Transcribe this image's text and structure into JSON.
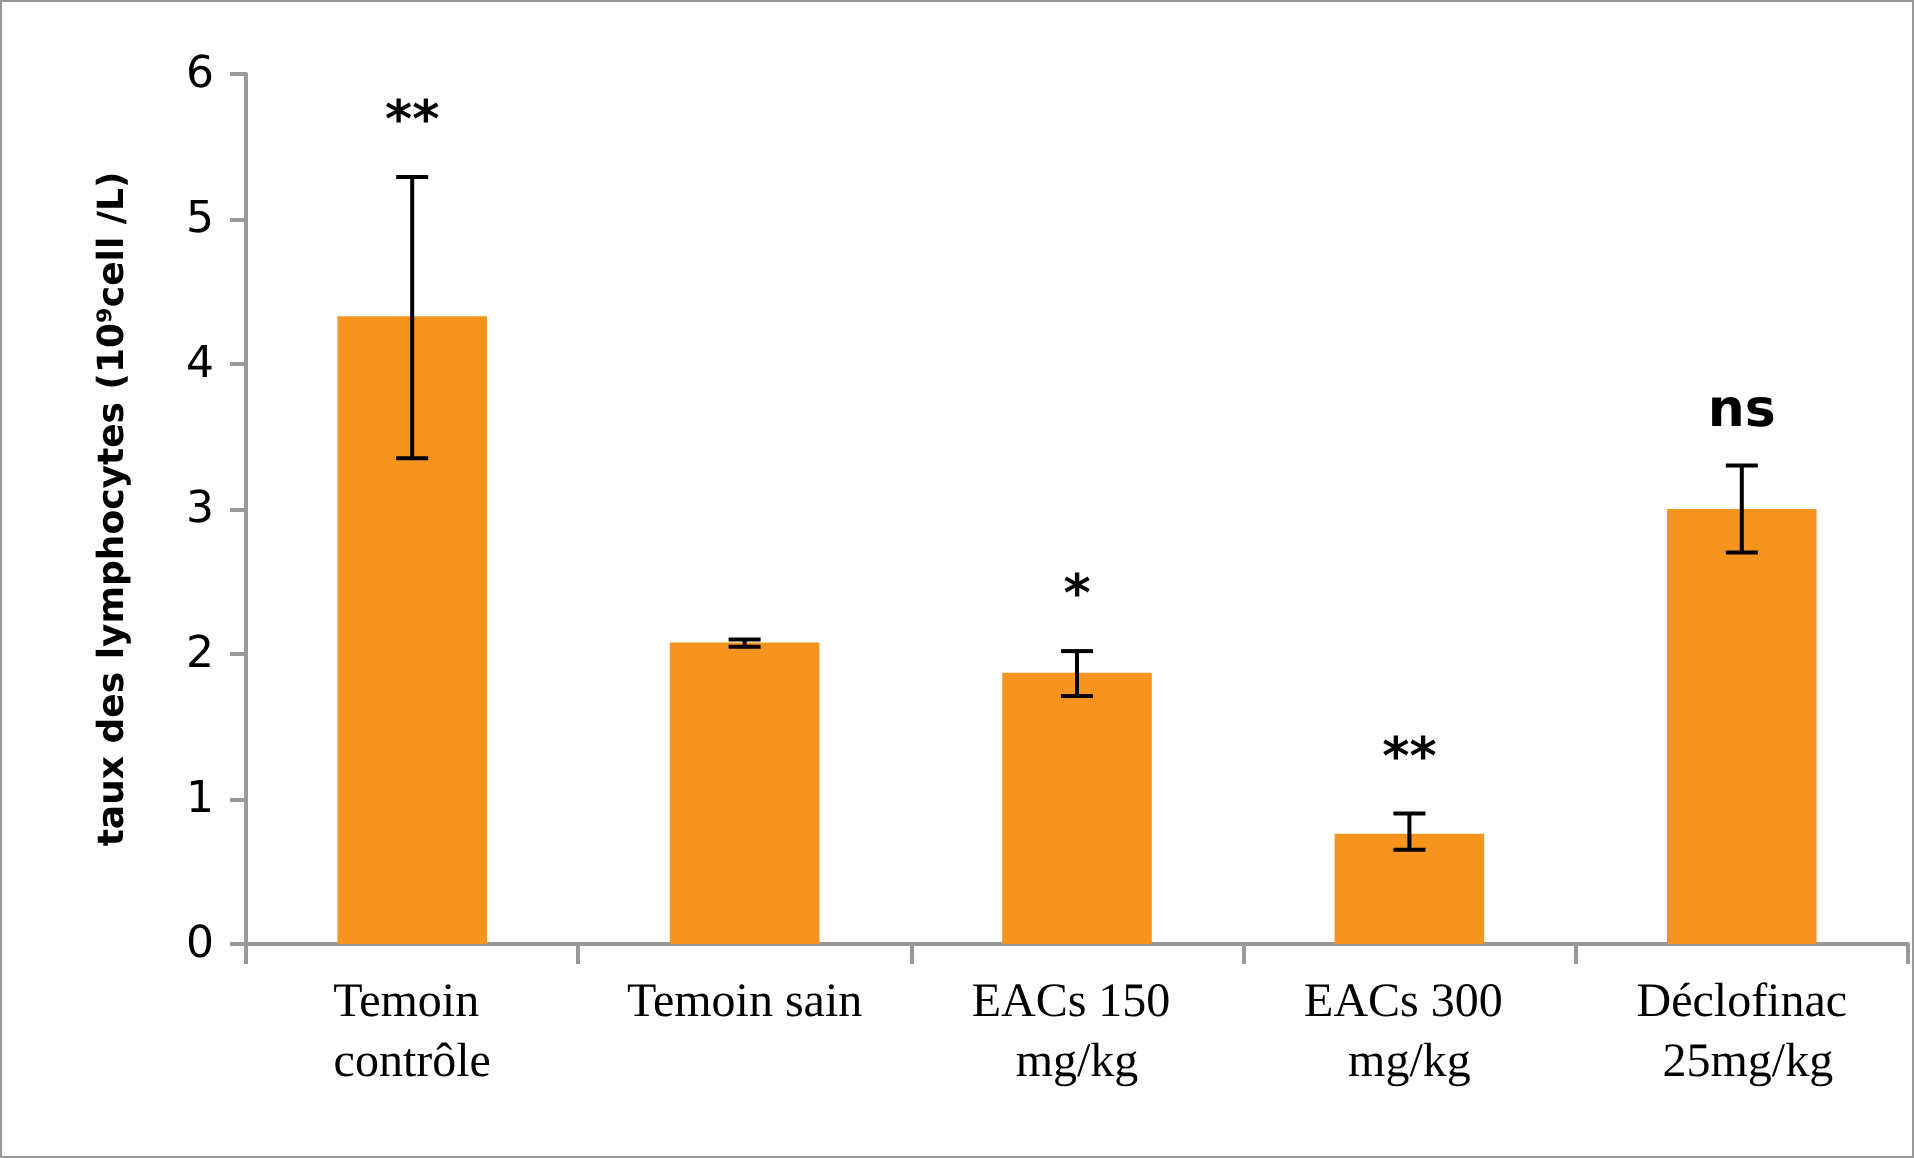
{
  "chart_data": {
    "type": "bar",
    "ylabel": "taux des lymphocytes (10⁹cell /L)",
    "categories": [
      "Temoin contrôle",
      "Temoin sain",
      "EACs 150 mg/kg",
      "EACs 300 mg/kg",
      "Déclofinac 25mg/kg"
    ],
    "values": [
      4.33,
      2.08,
      1.87,
      0.76,
      3.0
    ],
    "errors": [
      [
        3.35,
        5.29
      ],
      [
        2.05,
        2.1
      ],
      [
        1.71,
        2.02
      ],
      [
        0.65,
        0.9
      ],
      [
        2.7,
        3.3
      ]
    ],
    "color": "#f7941d",
    "ylim": [
      0,
      6
    ],
    "yticks": [
      0,
      1,
      2,
      3,
      4,
      5,
      6
    ],
    "grid": false,
    "value_labels": [
      "**",
      null,
      "*",
      "**",
      "ns"
    ]
  }
}
